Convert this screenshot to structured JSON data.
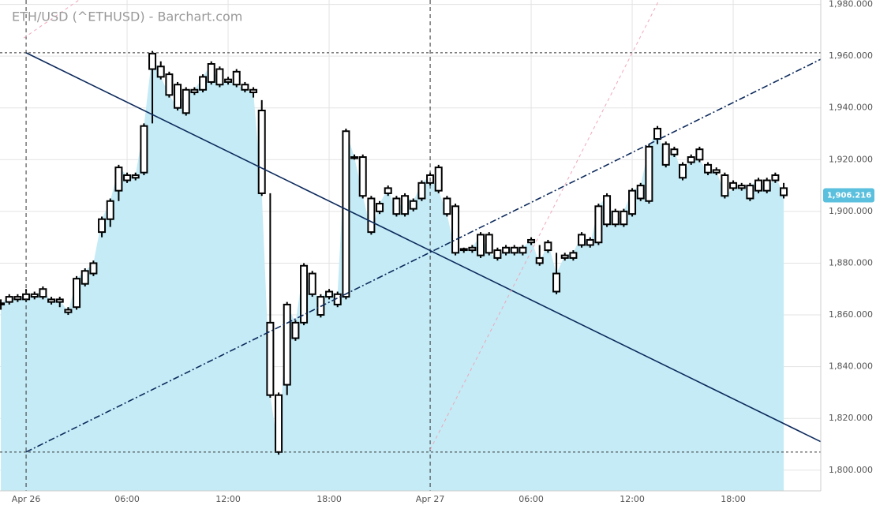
{
  "chart_data": {
    "type": "candlestick",
    "title": "ETH/USD (^ETHUSD) - Barchart.com",
    "x": [
      -1.5,
      -1,
      -0.5,
      0,
      0.5,
      1,
      1.5,
      2,
      2.5,
      3,
      3.5,
      4,
      4.5,
      5,
      5.5,
      6,
      6.5,
      7,
      7.5,
      8,
      8.5,
      9,
      9.5,
      10,
      10.5,
      11,
      11.5,
      12,
      12.5,
      13,
      13.5,
      14,
      14.5,
      15,
      15.5,
      16,
      16.5,
      17,
      17.5,
      18,
      18.5,
      19,
      19.5,
      20,
      20.5,
      21,
      21.5,
      22,
      22.5,
      23,
      23.5,
      24,
      24.5,
      25,
      25.5,
      26,
      26.5,
      27,
      27.5,
      28,
      28.5,
      29,
      29.5,
      30,
      30.5,
      31,
      31.5,
      32,
      32.5,
      33,
      33.5,
      34,
      34.5,
      35,
      35.5,
      36,
      36.5,
      37,
      37.5,
      38,
      38.5,
      39,
      39.5,
      40,
      40.5,
      41,
      41.5,
      42,
      42.5,
      43,
      43.5,
      44,
      44.5,
      45
    ],
    "open": [
      1864,
      1865,
      1867,
      1866,
      1868,
      1867,
      1866,
      1865,
      1862,
      1863,
      1872,
      1876,
      1892,
      1897,
      1908,
      1912,
      1913,
      1915,
      1955,
      1956,
      1953,
      1949,
      1938,
      1946,
      1947,
      1950,
      1955,
      1950,
      1954,
      1949,
      1947,
      1939,
      1857,
      1829,
      1833,
      1851,
      1857,
      1876,
      1860,
      1867,
      1864,
      1867,
      1921,
      1921,
      1905,
      1900,
      1907,
      1905,
      1899,
      1901,
      1905,
      1911,
      1917,
      1905,
      1902,
      1885,
      1885,
      1883,
      1891,
      1885,
      1884,
      1884,
      1884,
      1888,
      1882,
      1885,
      1869,
      1882,
      1882,
      1887,
      1889,
      1888,
      1895,
      1900,
      1895,
      1899,
      1905,
      1904,
      1928,
      1926,
      1922,
      1918,
      1919,
      1924,
      1918,
      1915,
      1914,
      1911,
      1909,
      1905,
      1908,
      1912,
      1912,
      1909
    ],
    "close": [
      1864.5,
      1867,
      1866,
      1868,
      1867,
      1870,
      1865,
      1866,
      1861,
      1874,
      1877,
      1880,
      1897,
      1904,
      1917,
      1914,
      1914,
      1933,
      1961,
      1952,
      1945,
      1940,
      1947,
      1947,
      1952,
      1957,
      1949,
      1951,
      1949,
      1947,
      1946,
      1907,
      1829,
      1807,
      1864,
      1857,
      1879,
      1868,
      1867,
      1869,
      1868,
      1931,
      1921,
      1906,
      1892,
      1903,
      1909,
      1899,
      1906,
      1904,
      1911,
      1914,
      1908,
      1899,
      1884,
      1885.5,
      1886,
      1891,
      1884,
      1882,
      1886,
      1886,
      1886,
      1889,
      1880,
      1888,
      1876,
      1883,
      1884,
      1891,
      1887,
      1902,
      1906,
      1895,
      1900,
      1908,
      1910,
      1925,
      1932,
      1918,
      1924,
      1913,
      1921,
      1920,
      1915,
      1916,
      1906,
      1909,
      1910,
      1910,
      1912,
      1908,
      1914,
      1906.216
    ],
    "high": [
      1866,
      1868,
      1868,
      1870,
      1869,
      1871,
      1867,
      1867,
      1863,
      1875,
      1878,
      1881,
      1898,
      1905,
      1918,
      1915,
      1915,
      1934,
      1962,
      1958,
      1954,
      1950,
      1948,
      1948,
      1953,
      1958,
      1956,
      1952,
      1955,
      1950,
      1948,
      1943,
      1907,
      1830,
      1865,
      1858,
      1880,
      1877,
      1868,
      1870,
      1869,
      1932,
      1922,
      1922,
      1906,
      1904,
      1910,
      1906,
      1907,
      1905,
      1912,
      1915,
      1918,
      1906,
      1903,
      1886,
      1887,
      1892,
      1892,
      1886,
      1887,
      1887,
      1887,
      1890,
      1887,
      1889,
      1884,
      1884,
      1885,
      1892,
      1890,
      1903,
      1907,
      1901,
      1901,
      1909,
      1911,
      1926,
      1933,
      1927,
      1925,
      1919,
      1922,
      1925,
      1919,
      1917,
      1915,
      1912,
      1911,
      1911,
      1913,
      1913,
      1915,
      1911
    ],
    "low": [
      1862,
      1864,
      1865,
      1865,
      1866,
      1866,
      1864,
      1863,
      1860,
      1862,
      1871,
      1875,
      1890,
      1894,
      1904,
      1911,
      1912,
      1914,
      1934,
      1951,
      1944,
      1939,
      1937,
      1945,
      1946,
      1949,
      1948,
      1949,
      1948,
      1946,
      1944,
      1906,
      1828,
      1806,
      1829,
      1850,
      1856,
      1867,
      1859,
      1866,
      1863,
      1866,
      1920,
      1905,
      1891,
      1899,
      1906,
      1898,
      1898,
      1900,
      1904,
      1910,
      1907,
      1898,
      1883,
      1884,
      1884,
      1882,
      1883,
      1881,
      1883,
      1883,
      1883,
      1887,
      1879,
      1884,
      1868,
      1881,
      1881,
      1886,
      1886,
      1887,
      1894,
      1894,
      1894,
      1898,
      1904,
      1903,
      1926,
      1917,
      1921,
      1912,
      1918,
      1919,
      1914,
      1914,
      1905,
      1908,
      1908,
      1904,
      1907,
      1907,
      1911,
      1905
    ],
    "last_label": "1,906.216",
    "xlim": [
      -1.55,
      47.2
    ],
    "ylim": [
      1792,
      1981.7
    ],
    "xticks": [
      {
        "value": 0,
        "label": "Apr 26"
      },
      {
        "value": 6,
        "label": "06:00"
      },
      {
        "value": 12,
        "label": "12:00"
      },
      {
        "value": 18,
        "label": "18:00"
      },
      {
        "value": 24,
        "label": "Apr 27"
      },
      {
        "value": 30,
        "label": "06:00"
      },
      {
        "value": 36,
        "label": "12:00"
      },
      {
        "value": 42,
        "label": "18:00"
      }
    ],
    "yticks": [
      {
        "value": 1800,
        "label": "1,800.000"
      },
      {
        "value": 1820,
        "label": "1,820.000"
      },
      {
        "value": 1840,
        "label": "1,840.000"
      },
      {
        "value": 1860,
        "label": "1,860.000"
      },
      {
        "value": 1880,
        "label": "1,880.000"
      },
      {
        "value": 1900,
        "label": "1,900.000"
      },
      {
        "value": 1920,
        "label": "1,920.000"
      },
      {
        "value": 1940,
        "label": "1,940.000"
      },
      {
        "value": 1960,
        "label": "1,960.000"
      },
      {
        "value": 1980,
        "label": "1,980.000"
      }
    ],
    "grid": true,
    "hlines": [
      1961.3,
      1807
    ],
    "trend_lines": [
      {
        "points": [
          [
            0,
            1961.3
          ],
          [
            47.2,
            1811
          ]
        ],
        "color": "#0d2a5c",
        "style": "solid"
      },
      {
        "points": [
          [
            0,
            1807
          ],
          [
            47.2,
            1958.8
          ]
        ],
        "color": "#0d2a5c",
        "style": "dashdot"
      },
      {
        "points": [
          [
            24,
            1807.9
          ],
          [
            37.6,
            1981.7
          ]
        ],
        "color": "#f2a6b8",
        "style": "dashed"
      },
      {
        "points": [
          [
            -0.14,
            1967
          ],
          [
            3.14,
            1981.7
          ]
        ],
        "color": "#f2a6b8",
        "style": "dashed"
      }
    ],
    "area_color": "#c4ebf6",
    "color": "#000000"
  }
}
